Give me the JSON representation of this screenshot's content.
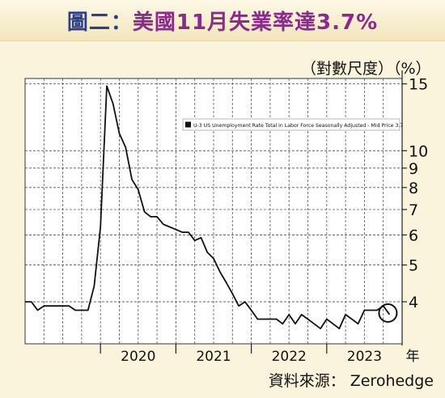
{
  "header": {
    "title_prefix": "圖二：",
    "title_main": "美國11月失業率達3.7%"
  },
  "scale_note": "（對數尺度）（%）",
  "source": "資料來源：  Zerohedge",
  "colors": {
    "background": "#fbf4dd",
    "plot_background": "#ffffff",
    "line": "#111111",
    "grid": "#555555",
    "title_prefix": "#2f3e86",
    "title_main": "#8a2a8a"
  },
  "chart_data": {
    "type": "line",
    "title": "美國11月失業率達3.7%",
    "xlabel": "年",
    "ylabel": "（對數尺度）（%）",
    "y_scale": "log",
    "ylim": [
      3.1,
      15.5
    ],
    "y_ticks": [
      4,
      5,
      6,
      7,
      8,
      9,
      10,
      15
    ],
    "x_ticks": [
      "2020",
      "2021",
      "2022",
      "2023"
    ],
    "grid": true,
    "legend_position": "top-right",
    "series": [
      {
        "name": "U-3 US Unemployment Rate Total in Labor Force Seasonally Adjusted - Mid Price 3.7",
        "x": [
          "2019-01",
          "2019-02",
          "2019-03",
          "2019-04",
          "2019-05",
          "2019-06",
          "2019-07",
          "2019-08",
          "2019-09",
          "2019-10",
          "2019-11",
          "2019-12",
          "2020-01",
          "2020-02",
          "2020-03",
          "2020-04",
          "2020-05",
          "2020-06",
          "2020-07",
          "2020-08",
          "2020-09",
          "2020-10",
          "2020-11",
          "2020-12",
          "2021-01",
          "2021-02",
          "2021-03",
          "2021-04",
          "2021-05",
          "2021-06",
          "2021-07",
          "2021-08",
          "2021-09",
          "2021-10",
          "2021-11",
          "2021-12",
          "2022-01",
          "2022-02",
          "2022-03",
          "2022-04",
          "2022-05",
          "2022-06",
          "2022-07",
          "2022-08",
          "2022-09",
          "2022-10",
          "2022-11",
          "2022-12",
          "2023-01",
          "2023-02",
          "2023-03",
          "2023-04",
          "2023-05",
          "2023-06",
          "2023-07",
          "2023-08",
          "2023-09",
          "2023-10",
          "2023-11"
        ],
        "values": [
          4.0,
          4.0,
          3.8,
          3.9,
          3.9,
          3.9,
          3.9,
          3.9,
          3.8,
          3.8,
          3.8,
          4.4,
          6.3,
          14.8,
          13.3,
          11.1,
          10.2,
          8.4,
          7.9,
          6.9,
          6.7,
          6.7,
          6.4,
          6.3,
          6.2,
          6.1,
          6.1,
          5.8,
          5.9,
          5.4,
          5.2,
          4.8,
          4.5,
          4.2,
          3.9,
          4.0,
          3.8,
          3.6,
          3.6,
          3.6,
          3.6,
          3.5,
          3.7,
          3.5,
          3.7,
          3.6,
          3.5,
          3.4,
          3.6,
          3.5,
          3.4,
          3.7,
          3.6,
          3.5,
          3.8,
          3.8,
          3.8,
          3.9,
          3.7
        ]
      }
    ],
    "annotation": "circle around latest value 3.7"
  }
}
